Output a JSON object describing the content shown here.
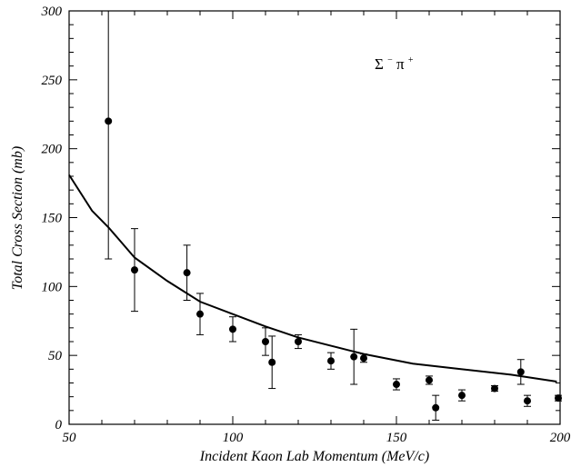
{
  "chart_data": {
    "type": "scatter",
    "xlabel": "Incident Kaon Lab Momentum (MeV/c)",
    "ylabel": "Total Cross Section (mb)",
    "xlim": [
      50,
      200
    ],
    "ylim": [
      0,
      300
    ],
    "xticks": [
      50,
      100,
      150,
      200
    ],
    "yticks": [
      0,
      50,
      100,
      150,
      200,
      250,
      300
    ],
    "x_minor_step": 10,
    "y_minor_step": 10,
    "grid": false,
    "annotation": {
      "base1": "Σ",
      "sup1": "−",
      "base2": "π",
      "sup2": "+",
      "position": "top-right"
    },
    "series": [
      {
        "kind": "points-with-error-bars",
        "color": "#000000",
        "points": [
          {
            "x": 62,
            "y": 220,
            "err_low": 100,
            "err_high": 80
          },
          {
            "x": 70,
            "y": 112,
            "err_low": 30,
            "err_high": 30
          },
          {
            "x": 86,
            "y": 110,
            "err_low": 20,
            "err_high": 20
          },
          {
            "x": 90,
            "y": 80,
            "err_low": 15,
            "err_high": 15
          },
          {
            "x": 100,
            "y": 69,
            "err_low": 9,
            "err_high": 9
          },
          {
            "x": 110,
            "y": 60,
            "err_low": 10,
            "err_high": 10
          },
          {
            "x": 112,
            "y": 45,
            "err_low": 19,
            "err_high": 19
          },
          {
            "x": 120,
            "y": 60,
            "err_low": 5,
            "err_high": 5
          },
          {
            "x": 130,
            "y": 46,
            "err_low": 6,
            "err_high": 6
          },
          {
            "x": 137,
            "y": 49,
            "err_low": 20,
            "err_high": 20
          },
          {
            "x": 140,
            "y": 48,
            "err_low": 3,
            "err_high": 3
          },
          {
            "x": 150,
            "y": 29,
            "err_low": 4,
            "err_high": 4
          },
          {
            "x": 160,
            "y": 32,
            "err_low": 3,
            "err_high": 3
          },
          {
            "x": 162,
            "y": 12,
            "err_low": 9,
            "err_high": 9
          },
          {
            "x": 170,
            "y": 21,
            "err_low": 4,
            "err_high": 4
          },
          {
            "x": 180,
            "y": 26,
            "err_low": 2,
            "err_high": 2
          },
          {
            "x": 188,
            "y": 38,
            "err_low": 9,
            "err_high": 9
          },
          {
            "x": 190,
            "y": 17,
            "err_low": 4,
            "err_high": 4
          },
          {
            "x": 200,
            "y": 19,
            "err_low": 2,
            "err_high": 2
          }
        ]
      },
      {
        "kind": "line",
        "color": "#000000",
        "x": [
          50,
          57,
          62,
          70,
          80,
          90,
          100,
          110,
          120,
          130,
          140,
          155,
          170,
          185,
          199
        ],
        "y": [
          181,
          155,
          143,
          121,
          104,
          89,
          80,
          71,
          63,
          57,
          51,
          44,
          40,
          36,
          31
        ]
      }
    ]
  }
}
